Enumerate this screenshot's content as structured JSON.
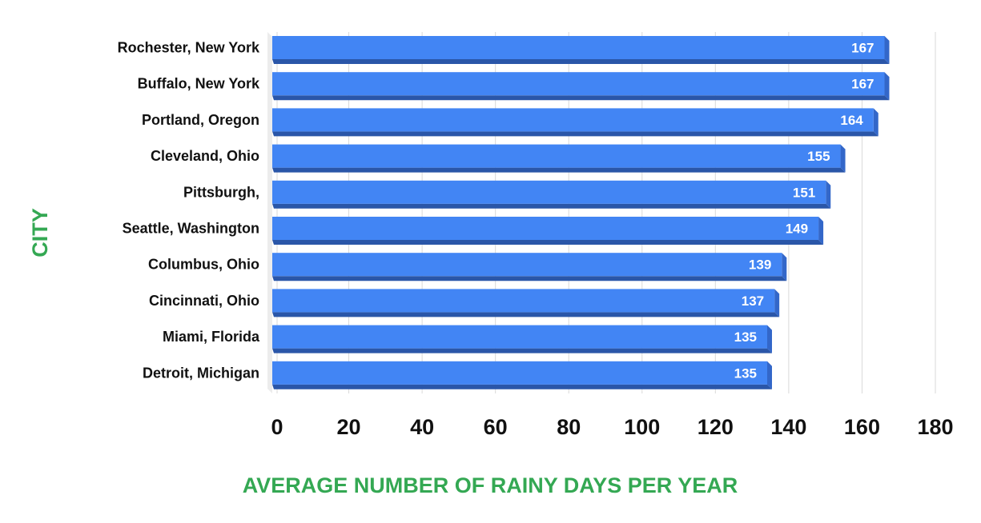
{
  "colors": {
    "bar_front": "#4285F4",
    "bar_bottom": "#2A56A8",
    "bar_side": "#3367C9",
    "axis_title": "#34A853",
    "grid": "#d9d9d9",
    "depth_wall": "#ececec"
  },
  "chart_data": {
    "type": "bar",
    "orientation": "horizontal",
    "style": "3d",
    "title": "",
    "xlabel": "AVERAGE NUMBER OF RAINY DAYS PER YEAR",
    "ylabel": "CITY",
    "xlim": [
      0,
      180
    ],
    "xticks": [
      0,
      20,
      40,
      60,
      80,
      100,
      120,
      140,
      160,
      180
    ],
    "grid": true,
    "legend": "none",
    "categories": [
      "Rochester, New York",
      "Buffalo, New York",
      "Portland, Oregon",
      "Cleveland, Ohio",
      "Pittsburgh,",
      "Seattle, Washington",
      "Columbus, Ohio",
      "Cincinnati, Ohio",
      "Miami, Florida",
      "Detroit, Michigan"
    ],
    "values": [
      167,
      167,
      164,
      155,
      151,
      149,
      139,
      137,
      135,
      135
    ]
  }
}
